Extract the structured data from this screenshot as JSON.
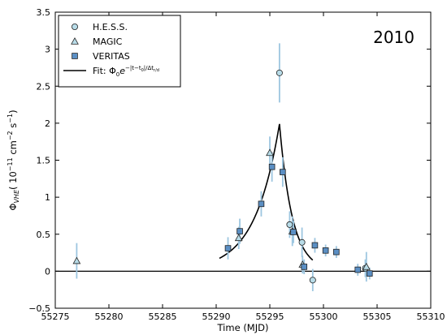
{
  "chart_data": {
    "type": "scatter",
    "xlabel": "Time (MJD)",
    "ylabel_main": "Φ",
    "ylabel_sub": "VHE",
    "ylabel_units": "( 10",
    "ylabel_exp1": "−11",
    "ylabel_units2": " cm",
    "ylabel_exp2": "−2",
    "ylabel_units3": " s",
    "ylabel_exp3": "−1",
    "ylabel_close": ")",
    "annotation": "2010",
    "xlim": [
      55275,
      55310
    ],
    "ylim": [
      -0.5,
      3.5
    ],
    "xticks": [
      55275,
      55280,
      55285,
      55290,
      55295,
      55300,
      55305,
      55310
    ],
    "yticks": [
      -0.5,
      0,
      0.5,
      1,
      1.5,
      2,
      2.5,
      3,
      3.5
    ],
    "xtick_labels": [
      "55275",
      "55280",
      "55285",
      "55290",
      "55295",
      "55300",
      "55305",
      "55310"
    ],
    "ytick_labels": [
      "−0.5",
      "0",
      "0.5",
      "1",
      "1.5",
      "2",
      "2.5",
      "3",
      "3.5"
    ],
    "baseline": 0,
    "series": [
      {
        "name": "H.E.S.S.",
        "marker": "circle",
        "points": [
          {
            "x": 55295.9,
            "y": 2.68,
            "err": 0.4
          },
          {
            "x": 55296.85,
            "y": 0.63,
            "err": 0.18
          },
          {
            "x": 55298.0,
            "y": 0.39,
            "err": 0.2
          },
          {
            "x": 55299.0,
            "y": -0.12,
            "err": 0.15
          },
          {
            "x": 55303.9,
            "y": 0.04,
            "err": 0.12
          }
        ]
      },
      {
        "name": "MAGIC",
        "marker": "triangle",
        "points": [
          {
            "x": 55277.0,
            "y": 0.14,
            "err": 0.24
          },
          {
            "x": 55292.1,
            "y": 0.45,
            "err": 0.15
          },
          {
            "x": 55295.0,
            "y": 1.6,
            "err": 0.22
          },
          {
            "x": 55297.1,
            "y": 0.54,
            "err": 0.2
          },
          {
            "x": 55298.05,
            "y": 0.09,
            "err": 0.12
          },
          {
            "x": 55304.0,
            "y": 0.06,
            "err": 0.2
          }
        ]
      },
      {
        "name": "VERITAS",
        "marker": "square",
        "points": [
          {
            "x": 55291.1,
            "y": 0.31,
            "err": 0.15
          },
          {
            "x": 55292.2,
            "y": 0.54,
            "err": 0.17
          },
          {
            "x": 55294.2,
            "y": 0.91,
            "err": 0.17
          },
          {
            "x": 55295.2,
            "y": 1.41,
            "err": 0.2
          },
          {
            "x": 55296.2,
            "y": 1.34,
            "err": 0.2
          },
          {
            "x": 55297.2,
            "y": 0.53,
            "err": 0.15
          },
          {
            "x": 55298.2,
            "y": 0.06,
            "err": 0.1
          },
          {
            "x": 55299.2,
            "y": 0.35,
            "err": 0.1
          },
          {
            "x": 55300.2,
            "y": 0.28,
            "err": 0.08
          },
          {
            "x": 55301.2,
            "y": 0.26,
            "err": 0.08
          },
          {
            "x": 55303.2,
            "y": 0.02,
            "err": 0.08
          },
          {
            "x": 55304.3,
            "y": -0.03,
            "err": 0.08
          }
        ]
      }
    ],
    "fit": {
      "name_prefix": "Fit: Φ",
      "name_sub": "0",
      "name_e": "e",
      "name_exp": "−|t−t",
      "name_exp_sub": "0",
      "name_exp_rest": "|/Δt",
      "name_exp_sub2": "r/d",
      "peak_x": 55295.9,
      "peak_y": 1.99,
      "x_start": 55290.3,
      "x_end": 55299.0,
      "tau_rise": 2.3,
      "tau_decay": 1.2
    },
    "colors": {
      "marker_fill": "#5b8fc4",
      "marker_fill_light": "#b8dce8",
      "errorbar": "#9dc6e0",
      "line": "#000000"
    },
    "legend_position": "top-left"
  }
}
